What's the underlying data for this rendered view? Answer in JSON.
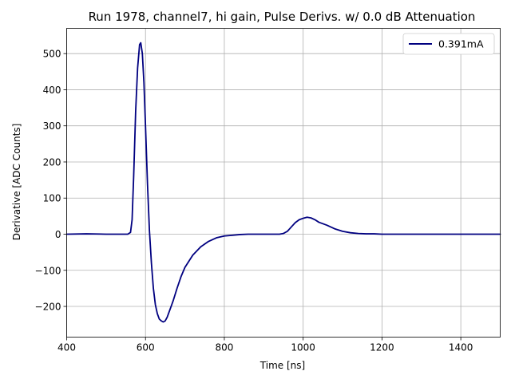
{
  "chart_data": {
    "type": "line",
    "title": "Run 1978, channel7, hi gain, Pulse Derivs. w/ 0.0 dB Attenuation",
    "xlabel": "Time [ns]",
    "ylabel": "Derivative [ADC Counts]",
    "xlim": [
      400,
      1500
    ],
    "ylim": [
      -285,
      570
    ],
    "xticks": [
      400,
      600,
      800,
      1000,
      1200,
      1400
    ],
    "yticks": [
      -200,
      -100,
      0,
      100,
      200,
      300,
      400,
      500
    ],
    "xtick_labels": [
      "400",
      "600",
      "800",
      "1000",
      "1200",
      "1400"
    ],
    "ytick_labels": [
      "−200",
      "−100",
      "0",
      "100",
      "200",
      "300",
      "400",
      "500"
    ],
    "grid": true,
    "legend_position": "top-right",
    "series": [
      {
        "name": "0.391mA",
        "color": "#000080",
        "x": [
          400,
          450,
          500,
          540,
          555,
          562,
          566,
          570,
          575,
          580,
          585,
          588,
          592,
          596,
          600,
          605,
          610,
          615,
          620,
          625,
          630,
          635,
          640,
          645,
          650,
          655,
          660,
          670,
          680,
          690,
          700,
          720,
          740,
          760,
          780,
          800,
          820,
          840,
          860,
          880,
          900,
          920,
          940,
          950,
          960,
          970,
          980,
          990,
          1000,
          1010,
          1020,
          1030,
          1040,
          1060,
          1080,
          1100,
          1120,
          1140,
          1160,
          1180,
          1200,
          1250,
          1300,
          1350,
          1400,
          1450,
          1500
        ],
        "y": [
          0,
          1,
          0,
          0,
          0,
          5,
          40,
          160,
          340,
          460,
          525,
          530,
          500,
          420,
          300,
          140,
          10,
          -80,
          -150,
          -195,
          -220,
          -235,
          -240,
          -243,
          -240,
          -230,
          -215,
          -185,
          -150,
          -118,
          -92,
          -58,
          -35,
          -20,
          -10,
          -5,
          -3,
          -1,
          0,
          0,
          0,
          0,
          0,
          2,
          8,
          20,
          32,
          40,
          44,
          47,
          45,
          40,
          33,
          25,
          15,
          8,
          4,
          2,
          1,
          1,
          0,
          0,
          0,
          0,
          0,
          0,
          0
        ]
      }
    ]
  }
}
